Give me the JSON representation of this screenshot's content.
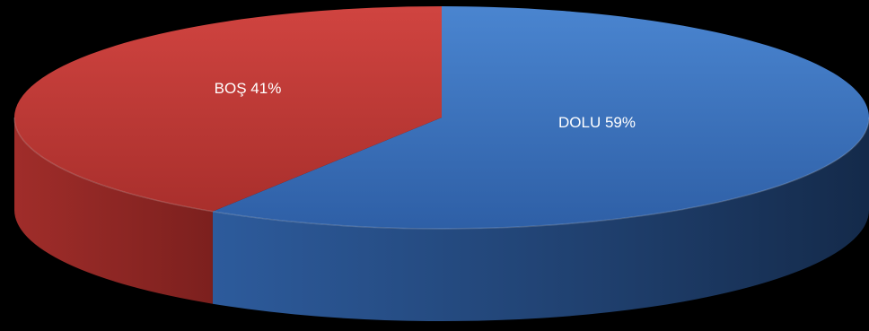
{
  "chart_data": {
    "type": "pie",
    "style": "3d",
    "categories": [
      "DOLU",
      "BOŞ"
    ],
    "values": [
      59,
      41
    ],
    "labels": [
      "DOLU 59%",
      "BOŞ 41%"
    ],
    "colors": [
      "#3a72bf",
      "#c23a37"
    ],
    "background": "#000000",
    "title": ""
  }
}
